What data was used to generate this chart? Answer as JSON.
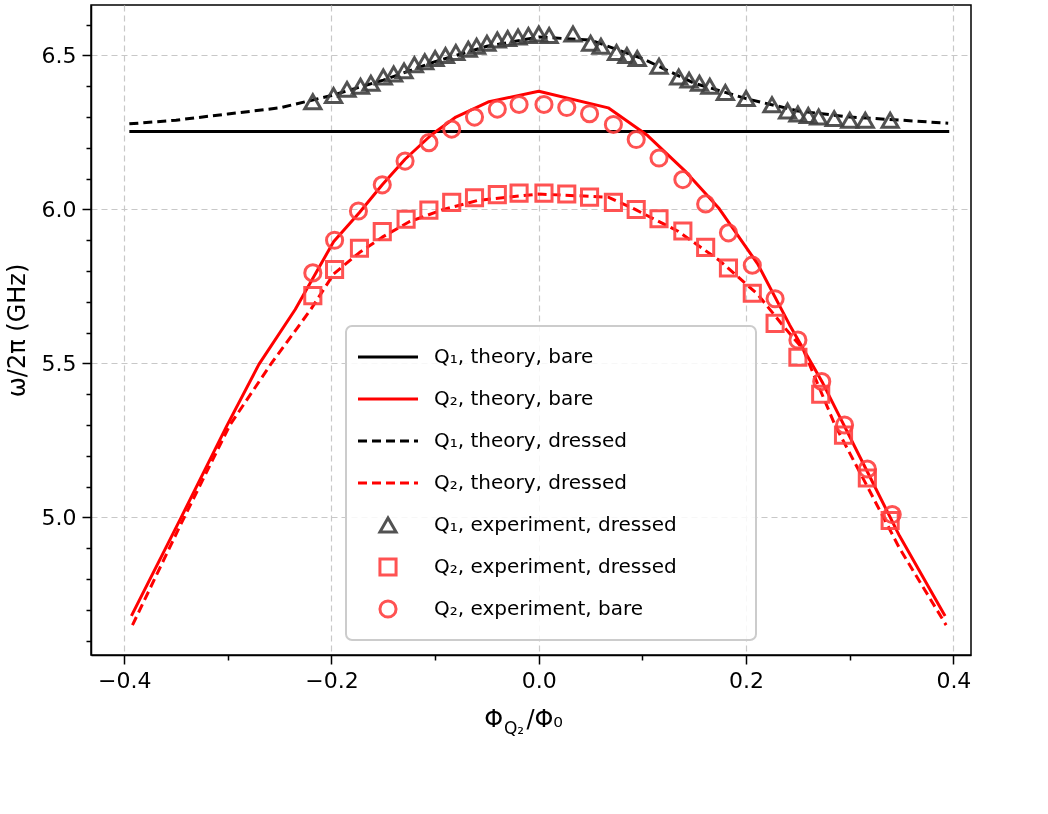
{
  "chart_data": {
    "type": "line",
    "xlabel": "Φ$_{Q₂}$/Φ₀",
    "ylabel": "ω/2π (GHz)",
    "xlim": [
      -0.432,
      0.417
    ],
    "ylim": [
      4.553,
      6.664
    ],
    "xticks": [
      {
        "value": -0.4,
        "label": "−0.4"
      },
      {
        "value": -0.3,
        "label": null
      },
      {
        "value": -0.2,
        "label": "−0.2"
      },
      {
        "value": -0.1,
        "label": null
      },
      {
        "value": 0,
        "label": "0.0"
      },
      {
        "value": 0.1,
        "label": null
      },
      {
        "value": 0.2,
        "label": "0.2"
      },
      {
        "value": 0.3,
        "label": null
      },
      {
        "value": 0.4,
        "label": "0.4"
      }
    ],
    "yticks": [
      {
        "value": 4.6,
        "label": null
      },
      {
        "value": 4.7,
        "label": null
      },
      {
        "value": 4.8,
        "label": null
      },
      {
        "value": 4.9,
        "label": null
      },
      {
        "value": 5.0,
        "label": "5.0"
      },
      {
        "value": 5.1,
        "label": null
      },
      {
        "value": 5.2,
        "label": null
      },
      {
        "value": 5.3,
        "label": null
      },
      {
        "value": 5.4,
        "label": null
      },
      {
        "value": 5.5,
        "label": "5.5"
      },
      {
        "value": 5.6,
        "label": null
      },
      {
        "value": 5.7,
        "label": null
      },
      {
        "value": 5.8,
        "label": null
      },
      {
        "value": 5.9,
        "label": null
      },
      {
        "value": 6.0,
        "label": "6.0"
      },
      {
        "value": 6.1,
        "label": null
      },
      {
        "value": 6.2,
        "label": null
      },
      {
        "value": 6.3,
        "label": null
      },
      {
        "value": 6.4,
        "label": null
      },
      {
        "value": 6.5,
        "label": "6.5"
      },
      {
        "value": 6.6,
        "label": null
      }
    ],
    "grid": true,
    "legend": "bottom",
    "series": [
      {
        "name": "Q₁, theory, bare",
        "type": "line",
        "line_style": "solid",
        "color": "#000000",
        "x": [
          -0.395,
          0.396
        ],
        "values": [
          6.253,
          6.253
        ]
      },
      {
        "name": "Q₂, theory, bare",
        "type": "line",
        "line_style": "solid",
        "color": "#ff0000",
        "x": [
          -0.393,
          -0.345,
          -0.301,
          -0.27,
          -0.235,
          -0.198,
          -0.173,
          -0.151,
          -0.129,
          -0.104,
          -0.08,
          -0.048,
          0,
          0.067,
          0.105,
          0.142,
          0.174,
          0.211,
          0.242,
          0.274,
          0.317,
          0.348,
          0.392
        ],
        "values": [
          4.68,
          5.0,
          5.297,
          5.497,
          5.675,
          5.895,
          5.99,
          6.08,
          6.163,
          6.241,
          6.3,
          6.35,
          6.384,
          6.33,
          6.24,
          6.122,
          6.003,
          5.824,
          5.625,
          5.436,
          5.148,
          4.94,
          4.68
        ]
      },
      {
        "name": "Q₁, theory, dressed",
        "type": "line",
        "line_style": "dashed",
        "color": "#000000",
        "x": [
          -0.395,
          -0.35,
          -0.3,
          -0.25,
          -0.2,
          -0.15,
          -0.1,
          -0.05,
          0,
          0.05,
          0.1,
          0.15,
          0.2,
          0.25,
          0.3,
          0.35,
          0.395
        ],
        "values": [
          6.278,
          6.29,
          6.31,
          6.33,
          6.37,
          6.42,
          6.48,
          6.53,
          6.56,
          6.55,
          6.49,
          6.41,
          6.36,
          6.32,
          6.3,
          6.29,
          6.28
        ]
      },
      {
        "name": "Q₂, theory, dressed",
        "type": "line",
        "line_style": "dashed",
        "color": "#ff0000",
        "x": [
          -0.392,
          -0.345,
          -0.298,
          -0.258,
          -0.22,
          -0.198,
          -0.173,
          -0.151,
          -0.125,
          -0.092,
          -0.058,
          0,
          0.067,
          0.093,
          0.134,
          0.174,
          0.211,
          0.235,
          0.255,
          0.286,
          0.317,
          0.348,
          0.393
        ],
        "values": [
          4.65,
          4.98,
          5.3,
          5.5,
          5.675,
          5.79,
          5.86,
          5.91,
          5.96,
          6.0,
          6.03,
          6.05,
          6.04,
          6.0,
          5.93,
          5.835,
          5.725,
          5.625,
          5.546,
          5.298,
          5.1,
          4.9,
          4.65
        ]
      },
      {
        "name": "Q₁, experiment, dressed",
        "type": "scatter",
        "marker": "triangle",
        "color": "#404040",
        "x": [
          -0.218,
          -0.198,
          -0.185,
          -0.172,
          -0.162,
          -0.15,
          -0.14,
          -0.13,
          -0.12,
          -0.11,
          -0.1,
          -0.09,
          -0.08,
          -0.068,
          -0.06,
          -0.05,
          -0.04,
          -0.03,
          -0.02,
          -0.01,
          0.0,
          0.01,
          0.033,
          0.05,
          0.06,
          0.075,
          0.085,
          0.095,
          0.116,
          0.135,
          0.145,
          0.155,
          0.165,
          0.18,
          0.2,
          0.225,
          0.24,
          0.25,
          0.26,
          0.27,
          0.285,
          0.3,
          0.315,
          0.339
        ],
        "values": [
          6.35,
          6.37,
          6.39,
          6.4,
          6.41,
          6.43,
          6.44,
          6.45,
          6.47,
          6.48,
          6.49,
          6.5,
          6.51,
          6.52,
          6.53,
          6.54,
          6.55,
          6.555,
          6.56,
          6.565,
          6.57,
          6.565,
          6.57,
          6.54,
          6.53,
          6.51,
          6.5,
          6.49,
          6.465,
          6.43,
          6.42,
          6.41,
          6.4,
          6.38,
          6.36,
          6.34,
          6.32,
          6.31,
          6.305,
          6.3,
          6.295,
          6.29,
          6.29,
          6.29
        ]
      },
      {
        "name": "Q₂, experiment, dressed",
        "type": "scatter",
        "marker": "square",
        "color": "#ff4040",
        "x": [
          -0.218,
          -0.197,
          -0.173,
          -0.151,
          -0.128,
          -0.106,
          -0.084,
          -0.062,
          -0.04,
          -0.019,
          0.005,
          0.027,
          0.049,
          0.072,
          0.094,
          0.116,
          0.139,
          0.161,
          0.183,
          0.206,
          0.228,
          0.25,
          0.272,
          0.294,
          0.317,
          0.339
        ],
        "values": [
          5.72,
          5.805,
          5.874,
          5.928,
          5.968,
          5.998,
          6.023,
          6.038,
          6.048,
          6.053,
          6.053,
          6.05,
          6.04,
          6.023,
          6.0,
          5.97,
          5.93,
          5.877,
          5.81,
          5.728,
          5.63,
          5.52,
          5.4,
          5.267,
          5.128,
          4.99
        ]
      },
      {
        "name": "Q₂, experiment, bare",
        "type": "scatter",
        "marker": "circle",
        "color": "#ff4040",
        "x": [
          -0.218,
          -0.197,
          -0.174,
          -0.151,
          -0.129,
          -0.106,
          -0.084,
          -0.062,
          -0.04,
          -0.019,
          0.005,
          0.027,
          0.049,
          0.072,
          0.094,
          0.116,
          0.139,
          0.161,
          0.183,
          0.206,
          0.228,
          0.25,
          0.273,
          0.295,
          0.317,
          0.341
        ],
        "values": [
          5.794,
          5.9,
          5.995,
          6.08,
          6.157,
          6.217,
          6.261,
          6.3,
          6.326,
          6.341,
          6.341,
          6.331,
          6.311,
          6.276,
          6.227,
          6.167,
          6.097,
          6.018,
          5.924,
          5.819,
          5.71,
          5.576,
          5.441,
          5.3,
          5.157,
          5.009
        ]
      }
    ]
  }
}
